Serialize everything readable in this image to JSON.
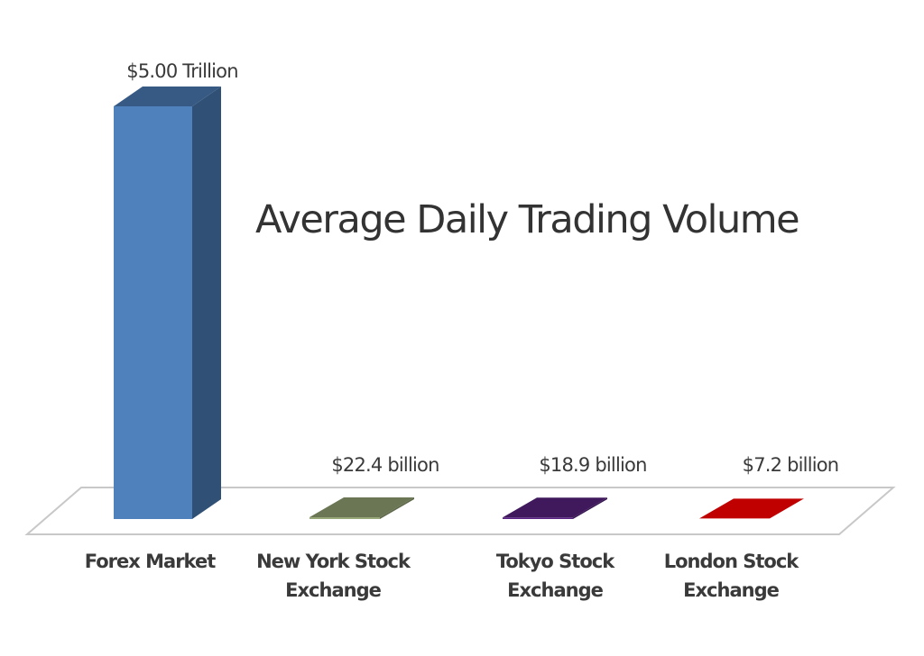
{
  "chart_data": {
    "type": "bar",
    "title": "Average Daily Trading Volume",
    "categories": [
      [
        "Forex Market"
      ],
      [
        "New York Stock",
        "Exchange"
      ],
      [
        "Tokyo Stock",
        "Exchange"
      ],
      [
        "London Stock",
        "Exchange"
      ]
    ],
    "values_billion_usd": [
      5000,
      22.4,
      18.9,
      7.2
    ],
    "data_labels": [
      "$5.00 Trillion",
      "$22.4 billion",
      "$18.9 billion",
      "$7.2 billion"
    ],
    "colors": [
      "#4f81bd",
      "#98a878",
      "#5a2383",
      "#c00000"
    ],
    "style": "3d-column",
    "grid": false,
    "legend": "none"
  }
}
